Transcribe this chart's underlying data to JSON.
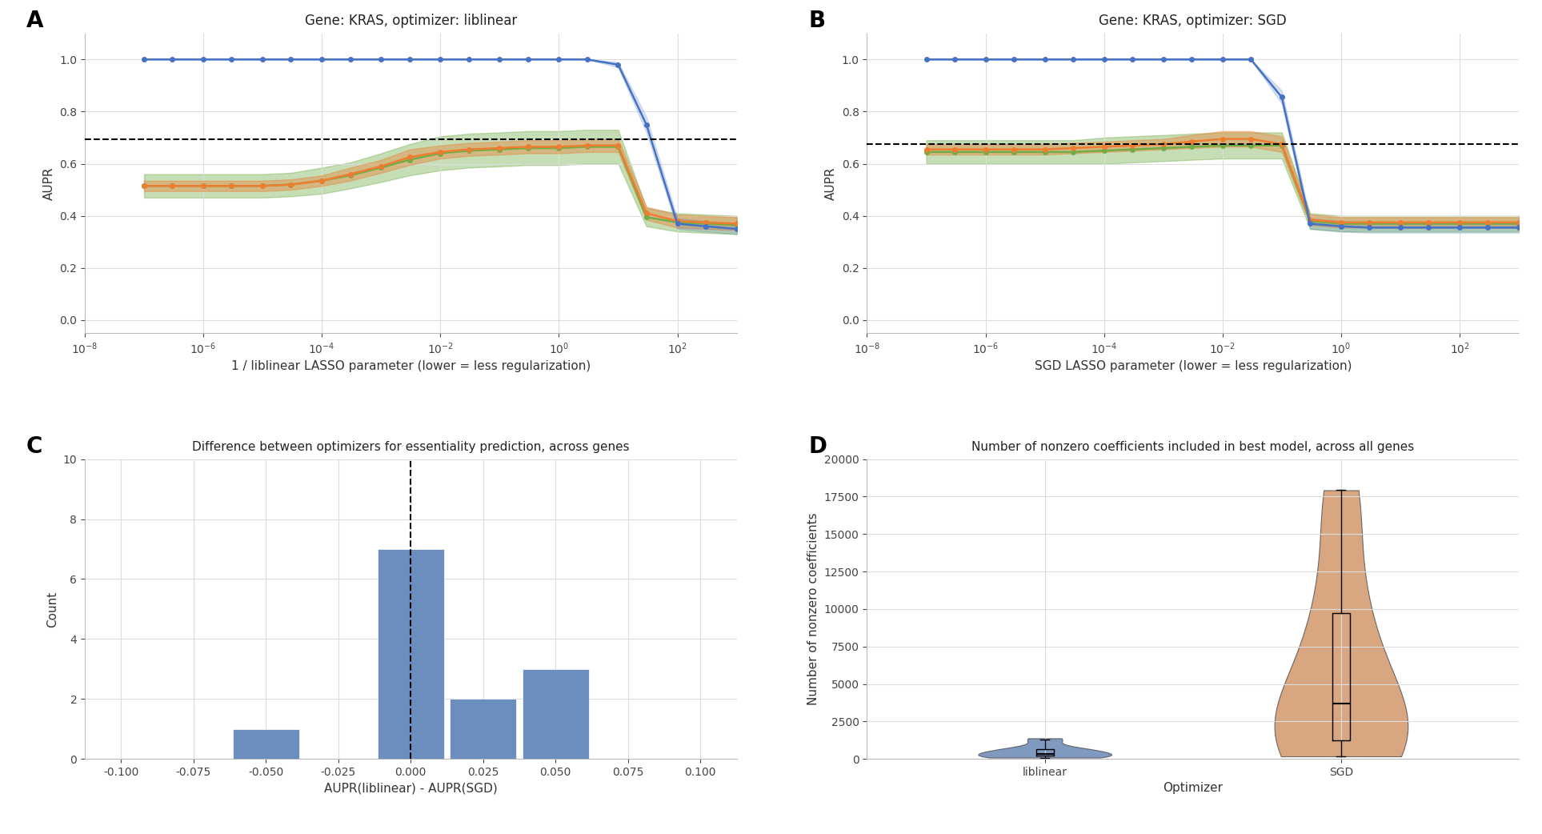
{
  "panel_A": {
    "title": "Gene: KRAS, optimizer: liblinear",
    "xlabel": "1 / liblinear LASSO parameter (lower = less regularization)",
    "ylabel": "AUPR",
    "xlim": [
      1e-08,
      1000.0
    ],
    "ylim": [
      -0.05,
      1.1
    ],
    "dashed_y": 0.695,
    "x_params": [
      1e-07,
      3e-07,
      1e-06,
      3e-06,
      1e-05,
      3e-05,
      0.0001,
      0.0003,
      0.001,
      0.003,
      0.01,
      0.03,
      0.1,
      0.3,
      1.0,
      3.0,
      10.0,
      30.0,
      100.0,
      300.0,
      1000.0
    ],
    "train_mean": [
      1.0,
      1.0,
      1.0,
      1.0,
      1.0,
      1.0,
      1.0,
      1.0,
      1.0,
      1.0,
      1.0,
      1.0,
      1.0,
      1.0,
      1.0,
      1.0,
      0.98,
      0.75,
      0.37,
      0.36,
      0.35
    ],
    "train_ci_low": [
      1.0,
      1.0,
      1.0,
      1.0,
      1.0,
      1.0,
      1.0,
      1.0,
      1.0,
      1.0,
      1.0,
      1.0,
      1.0,
      1.0,
      1.0,
      1.0,
      0.97,
      0.72,
      0.35,
      0.34,
      0.33
    ],
    "train_ci_high": [
      1.0,
      1.0,
      1.0,
      1.0,
      1.0,
      1.0,
      1.0,
      1.0,
      1.0,
      1.0,
      1.0,
      1.0,
      1.0,
      1.0,
      1.0,
      1.0,
      0.99,
      0.78,
      0.39,
      0.38,
      0.37
    ],
    "holdout_mean": [
      0.515,
      0.515,
      0.515,
      0.515,
      0.515,
      0.52,
      0.535,
      0.56,
      0.59,
      0.625,
      0.645,
      0.655,
      0.66,
      0.665,
      0.665,
      0.67,
      0.67,
      0.41,
      0.38,
      0.375,
      0.37
    ],
    "holdout_ci_low": [
      0.495,
      0.495,
      0.495,
      0.495,
      0.495,
      0.5,
      0.515,
      0.535,
      0.565,
      0.595,
      0.62,
      0.63,
      0.635,
      0.64,
      0.64,
      0.645,
      0.645,
      0.385,
      0.355,
      0.35,
      0.345
    ],
    "holdout_ci_high": [
      0.535,
      0.535,
      0.535,
      0.535,
      0.535,
      0.54,
      0.555,
      0.585,
      0.615,
      0.655,
      0.67,
      0.68,
      0.685,
      0.69,
      0.69,
      0.695,
      0.695,
      0.435,
      0.405,
      0.4,
      0.395
    ],
    "test_mean": [
      0.515,
      0.515,
      0.515,
      0.515,
      0.515,
      0.52,
      0.535,
      0.555,
      0.585,
      0.615,
      0.64,
      0.65,
      0.655,
      0.66,
      0.66,
      0.665,
      0.665,
      0.395,
      0.375,
      0.37,
      0.365
    ],
    "test_ci_low": [
      0.47,
      0.47,
      0.47,
      0.47,
      0.47,
      0.475,
      0.485,
      0.505,
      0.53,
      0.555,
      0.575,
      0.585,
      0.59,
      0.595,
      0.595,
      0.6,
      0.6,
      0.36,
      0.34,
      0.335,
      0.33
    ],
    "test_ci_high": [
      0.56,
      0.56,
      0.56,
      0.56,
      0.56,
      0.565,
      0.585,
      0.605,
      0.64,
      0.675,
      0.705,
      0.715,
      0.72,
      0.725,
      0.725,
      0.73,
      0.73,
      0.43,
      0.41,
      0.405,
      0.4
    ]
  },
  "panel_B": {
    "title": "Gene: KRAS, optimizer: SGD",
    "xlabel": "SGD LASSO parameter (lower = less regularization)",
    "ylabel": "AUPR",
    "xlim": [
      1e-08,
      1000.0
    ],
    "ylim": [
      -0.05,
      1.1
    ],
    "dashed_y": 0.675,
    "x_params": [
      1e-07,
      3e-07,
      1e-06,
      3e-06,
      1e-05,
      3e-05,
      0.0001,
      0.0003,
      0.001,
      0.003,
      0.01,
      0.03,
      0.1,
      0.3,
      1.0,
      3.0,
      10.0,
      30.0,
      100.0,
      300.0,
      1000.0
    ],
    "train_mean": [
      1.0,
      1.0,
      1.0,
      1.0,
      1.0,
      1.0,
      1.0,
      1.0,
      1.0,
      1.0,
      1.0,
      1.0,
      0.855,
      0.37,
      0.36,
      0.355,
      0.355,
      0.355,
      0.355,
      0.355,
      0.355
    ],
    "train_ci_low": [
      1.0,
      1.0,
      1.0,
      1.0,
      1.0,
      1.0,
      1.0,
      1.0,
      1.0,
      1.0,
      1.0,
      1.0,
      0.83,
      0.35,
      0.34,
      0.335,
      0.335,
      0.335,
      0.335,
      0.335,
      0.335
    ],
    "train_ci_high": [
      1.0,
      1.0,
      1.0,
      1.0,
      1.0,
      1.0,
      1.0,
      1.0,
      1.0,
      1.0,
      1.0,
      1.0,
      0.88,
      0.39,
      0.38,
      0.375,
      0.375,
      0.375,
      0.375,
      0.375,
      0.375
    ],
    "holdout_mean": [
      0.655,
      0.655,
      0.655,
      0.655,
      0.655,
      0.66,
      0.665,
      0.67,
      0.675,
      0.685,
      0.695,
      0.695,
      0.675,
      0.385,
      0.375,
      0.375,
      0.375,
      0.375,
      0.375,
      0.375,
      0.375
    ],
    "holdout_ci_low": [
      0.635,
      0.635,
      0.635,
      0.635,
      0.635,
      0.64,
      0.645,
      0.65,
      0.655,
      0.66,
      0.665,
      0.665,
      0.645,
      0.365,
      0.355,
      0.355,
      0.355,
      0.355,
      0.355,
      0.355,
      0.355
    ],
    "holdout_ci_high": [
      0.675,
      0.675,
      0.675,
      0.675,
      0.675,
      0.68,
      0.685,
      0.69,
      0.695,
      0.71,
      0.725,
      0.725,
      0.705,
      0.405,
      0.395,
      0.395,
      0.395,
      0.395,
      0.395,
      0.395,
      0.395
    ],
    "test_mean": [
      0.645,
      0.645,
      0.645,
      0.645,
      0.645,
      0.645,
      0.65,
      0.655,
      0.66,
      0.665,
      0.67,
      0.67,
      0.67,
      0.38,
      0.37,
      0.37,
      0.37,
      0.37,
      0.37,
      0.37,
      0.37
    ],
    "test_ci_low": [
      0.6,
      0.6,
      0.6,
      0.6,
      0.6,
      0.6,
      0.6,
      0.605,
      0.61,
      0.615,
      0.62,
      0.62,
      0.62,
      0.35,
      0.34,
      0.34,
      0.34,
      0.34,
      0.34,
      0.34,
      0.34
    ],
    "test_ci_high": [
      0.69,
      0.69,
      0.69,
      0.69,
      0.69,
      0.69,
      0.7,
      0.705,
      0.71,
      0.715,
      0.72,
      0.72,
      0.72,
      0.41,
      0.4,
      0.4,
      0.4,
      0.4,
      0.4,
      0.4,
      0.4
    ]
  },
  "panel_C": {
    "title": "Difference between optimizers for essentiality prediction, across genes",
    "xlabel": "AUPR(liblinear) - AUPR(SGD)",
    "ylabel": "Count",
    "xlim": [
      -0.1125,
      0.1125
    ],
    "ylim": [
      0,
      10
    ],
    "bin_edges": [
      -0.1125,
      -0.0875,
      -0.0625,
      -0.0375,
      -0.0125,
      0.0125,
      0.0375,
      0.0625,
      0.0875,
      0.1125
    ],
    "bin_counts": [
      0,
      0,
      1,
      0,
      7,
      2,
      3,
      0,
      0
    ],
    "bar_color": "#6c8ebf",
    "yticks": [
      0,
      2,
      4,
      6,
      8,
      10
    ],
    "xticks": [
      -0.1,
      -0.075,
      -0.05,
      -0.025,
      0.0,
      0.025,
      0.05,
      0.075,
      0.1
    ],
    "vline_x": 0.0
  },
  "panel_D": {
    "title": "Number of nonzero coefficients included in best model, across all genes",
    "xlabel": "Optimizer",
    "ylabel": "Number of nonzero coefficients",
    "ylim": [
      0,
      20000
    ],
    "yticks": [
      0,
      2500,
      5000,
      7500,
      10000,
      12500,
      15000,
      17500,
      20000
    ],
    "violin_color_liblinear": "#5577aa",
    "violin_color_sgd": "#cc8855"
  },
  "colors": {
    "train": "#4472c4",
    "holdout": "#ed7d31",
    "test": "#70ad47"
  },
  "label_A": "A",
  "label_B": "B",
  "label_C": "C",
  "label_D": "D"
}
